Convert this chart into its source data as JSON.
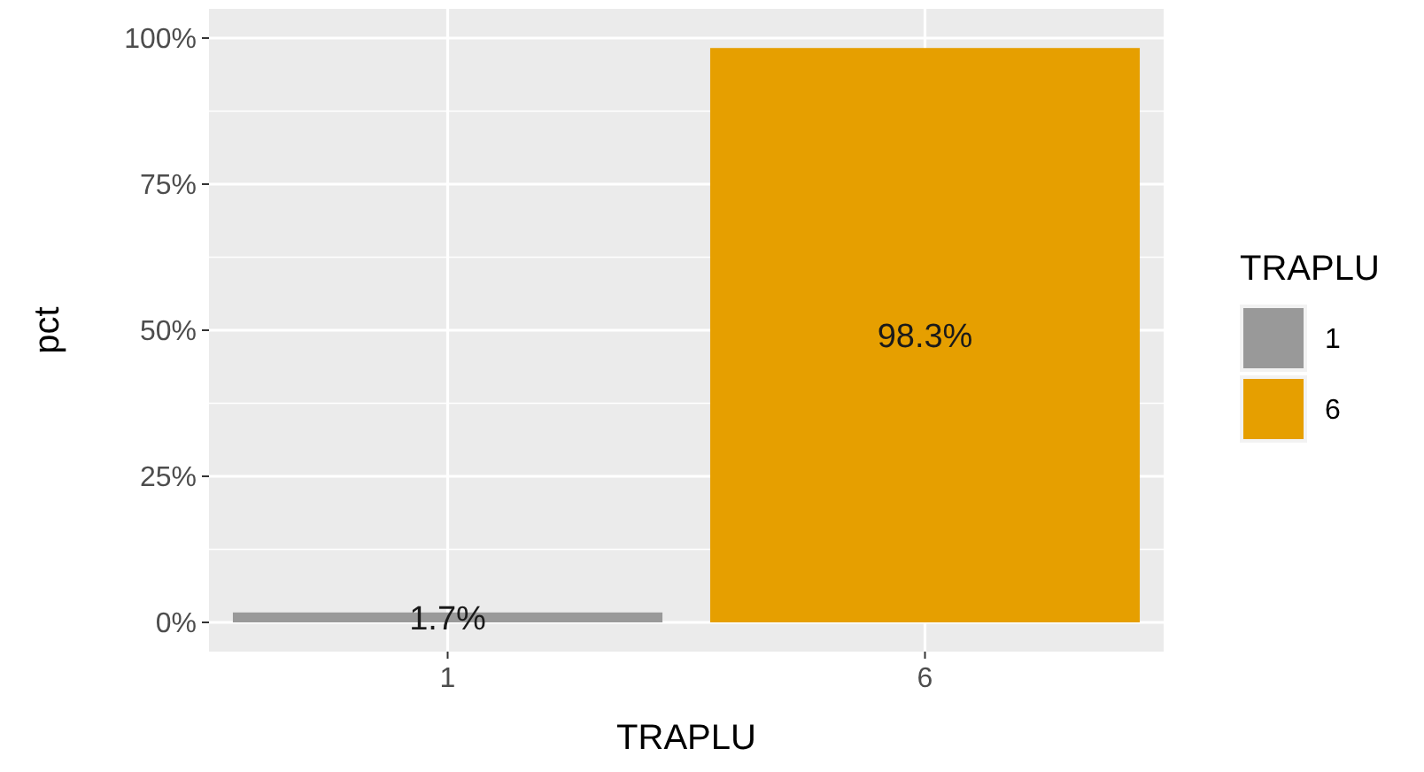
{
  "chart_data": {
    "type": "bar",
    "xlabel": "TRAPLU",
    "ylabel": "pct",
    "legend_title": "TRAPLU",
    "categories": [
      "1",
      "6"
    ],
    "series": [
      {
        "name": "1",
        "color": "#999999",
        "values": [
          1.7,
          null
        ],
        "value_labels": [
          "1.7%",
          null
        ]
      },
      {
        "name": "6",
        "color": "#e69f00",
        "values": [
          null,
          98.3
        ],
        "value_labels": [
          null,
          "98.3%"
        ]
      }
    ],
    "ylim": [
      -5,
      105
    ],
    "yticks": [
      {
        "value": 0,
        "label": "0%"
      },
      {
        "value": 25,
        "label": "25%"
      },
      {
        "value": 50,
        "label": "50%"
      },
      {
        "value": 75,
        "label": "75%"
      },
      {
        "value": 100,
        "label": "100%"
      }
    ],
    "grid": true,
    "legend": "right"
  }
}
